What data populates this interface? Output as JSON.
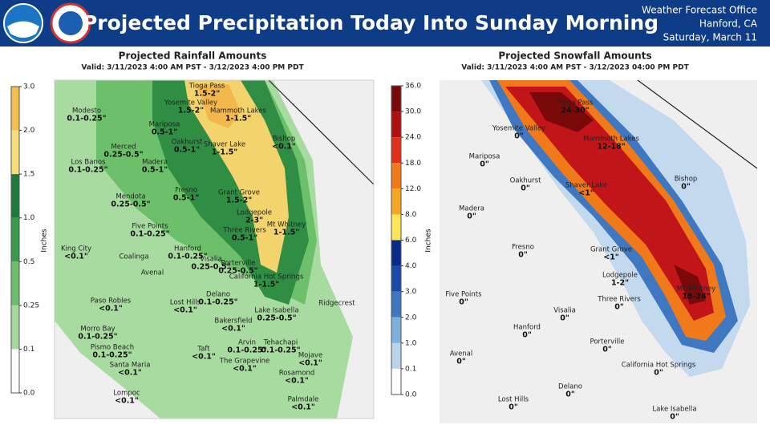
{
  "header": {
    "title": "Projected Precipitation Today Into Sunday Morning",
    "office": "Weather Forecast Office",
    "location": "Hanford, CA",
    "date": "Saturday, March 11"
  },
  "rain": {
    "title": "Projected Rainfall Amounts",
    "valid": "Valid: 3/11/2023 4:00 AM PST - 3/12/2023 4:00 PM PDT",
    "units": "Inches",
    "scale": [
      "3.0",
      "2.0",
      "1.5",
      "1.0",
      "0.5",
      "0.25",
      "0.1",
      "0.0"
    ],
    "places": [
      {
        "name": "Tioga Pass",
        "amount": "1.5-2\""
      },
      {
        "name": "Yosemite Valley",
        "amount": "1.5-2\""
      },
      {
        "name": "Mammoth Lakes",
        "amount": "1-1.5\""
      },
      {
        "name": "Modesto",
        "amount": "0.1-0.25\""
      },
      {
        "name": "Mariposa",
        "amount": "0.5-1\""
      },
      {
        "name": "Bishop",
        "amount": "<0.1\""
      },
      {
        "name": "Merced",
        "amount": "0.25-0.5\""
      },
      {
        "name": "Oakhurst",
        "amount": "0.5-1\""
      },
      {
        "name": "Shaver Lake",
        "amount": "1-1.5\""
      },
      {
        "name": "Los Banos",
        "amount": "0.1-0.25\""
      },
      {
        "name": "Madera",
        "amount": "0.5-1\""
      },
      {
        "name": "Fresno",
        "amount": "0.5-1\""
      },
      {
        "name": "Grant Grove",
        "amount": "1.5-2\""
      },
      {
        "name": "Mendota",
        "amount": "0.25-0.5\""
      },
      {
        "name": "Lodgepole",
        "amount": "2-3\""
      },
      {
        "name": "Mt Whitney",
        "amount": "1-1.5\""
      },
      {
        "name": "Five Points",
        "amount": "0.1-0.25\""
      },
      {
        "name": "Three Rivers",
        "amount": "0.5-1\""
      },
      {
        "name": "King City",
        "amount": "<0.1\""
      },
      {
        "name": "Hanford",
        "amount": "0.1-0.25\""
      },
      {
        "name": "Visalia",
        "amount": "0.25-0.5\""
      },
      {
        "name": "Coalinga"
      },
      {
        "name": "Porterville",
        "amount": "0.25-0.5\""
      },
      {
        "name": "Avenal"
      },
      {
        "name": "California Hot Springs",
        "amount": "1-1.5\""
      },
      {
        "name": "Delano",
        "amount": "0.1-0.25\""
      },
      {
        "name": "Paso Robles",
        "amount": "<0.1\""
      },
      {
        "name": "Lost Hills",
        "amount": "<0.1\""
      },
      {
        "name": "Lake Isabella",
        "amount": "0.25-0.5\""
      },
      {
        "name": "Ridgecrest"
      },
      {
        "name": "Bakersfield",
        "amount": "<0.1\""
      },
      {
        "name": "Morro Bay",
        "amount": "0.1-0.25\""
      },
      {
        "name": "Arvin",
        "amount": "0.1-0.25\""
      },
      {
        "name": "Tehachapi",
        "amount": "0.1-0.25\""
      },
      {
        "name": "Pismo Beach",
        "amount": "0.1-0.25\""
      },
      {
        "name": "Taft",
        "amount": "<0.1\""
      },
      {
        "name": "Mojave",
        "amount": "<0.1\""
      },
      {
        "name": "Santa Maria",
        "amount": "<0.1\""
      },
      {
        "name": "The Grapevine",
        "amount": "<0.1\""
      },
      {
        "name": "Rosamond",
        "amount": "<0.1\""
      },
      {
        "name": "Lompoc",
        "amount": "<0.1\""
      },
      {
        "name": "Palmdale",
        "amount": "<0.1\""
      }
    ]
  },
  "snow": {
    "title": "Projected Snowfall Amounts",
    "valid": "Valid: 3/11/2023 4:00 AM PST - 3/12/2023 04:00 PM PDT",
    "units": "Inches",
    "scale": [
      "36.0",
      "30.0",
      "24.0",
      "18.0",
      "12.0",
      "8.0",
      "6.0",
      "4.0",
      "3.0",
      "2.0",
      "1.0",
      "0.1",
      "0.0"
    ],
    "places": [
      {
        "name": "Tioga Pass",
        "amount": "24-30\""
      },
      {
        "name": "Yosemite Valley",
        "amount": "0\""
      },
      {
        "name": "Mammoth Lakes",
        "amount": "12-18\""
      },
      {
        "name": "Mariposa",
        "amount": "0\""
      },
      {
        "name": "Bishop",
        "amount": "0\""
      },
      {
        "name": "Oakhurst",
        "amount": "0\""
      },
      {
        "name": "Shaver Lake",
        "amount": "<1\""
      },
      {
        "name": "Madera",
        "amount": "0\""
      },
      {
        "name": "Fresno",
        "amount": "0\""
      },
      {
        "name": "Grant Grove",
        "amount": "<1\""
      },
      {
        "name": "Lodgepole",
        "amount": "1-2\""
      },
      {
        "name": "Mt Whitney",
        "amount": "18-24\""
      },
      {
        "name": "Five Points",
        "amount": "0\""
      },
      {
        "name": "Three Rivers",
        "amount": "0\""
      },
      {
        "name": "Visalia",
        "amount": "0\""
      },
      {
        "name": "Hanford",
        "amount": "0\""
      },
      {
        "name": "Porterville",
        "amount": "0\""
      },
      {
        "name": "Avenal",
        "amount": "0\""
      },
      {
        "name": "California Hot Springs",
        "amount": "0\""
      },
      {
        "name": "Delano",
        "amount": "0\""
      },
      {
        "name": "Lost Hills",
        "amount": "0\""
      },
      {
        "name": "Lake Isabella",
        "amount": "0\""
      }
    ]
  }
}
